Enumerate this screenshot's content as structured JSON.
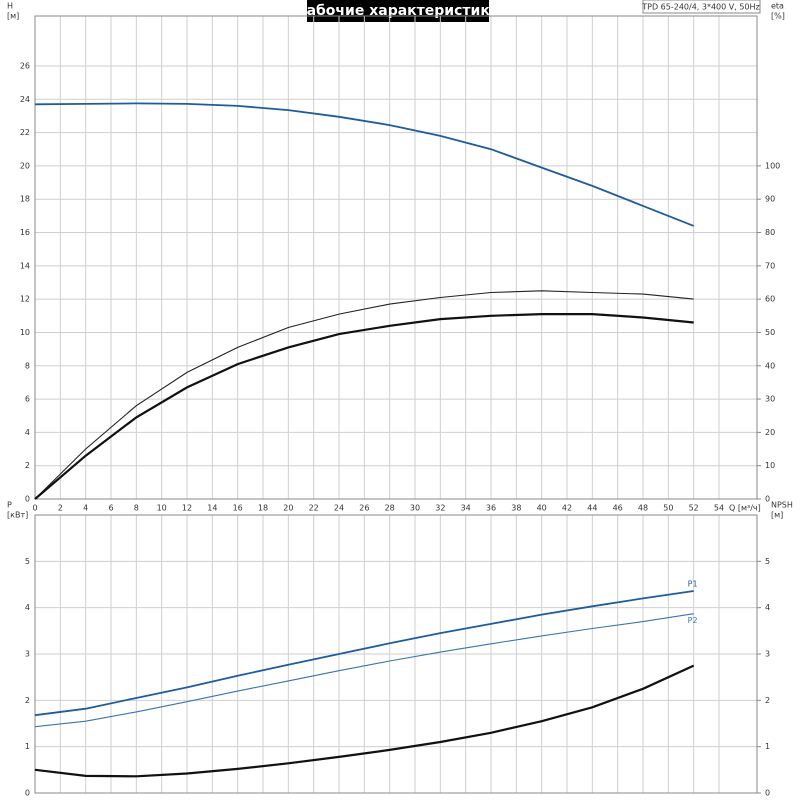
{
  "header": {
    "title": "Рабочие характеристики",
    "model": "TPD 65-240/4, 3*400 V, 50Hz"
  },
  "chart_data": [
    {
      "type": "line",
      "ylabel": "H",
      "yunit": "[м]",
      "y2label": "eta",
      "y2unit": "[%]",
      "xlabel": "Q [м³/ч]",
      "x": [
        0,
        4,
        8,
        12,
        16,
        20,
        24,
        28,
        32,
        36,
        40,
        44,
        48,
        52
      ],
      "xlim": [
        0,
        57
      ],
      "xticks": [
        0,
        2,
        4,
        6,
        8,
        10,
        12,
        14,
        16,
        18,
        20,
        22,
        24,
        26,
        28,
        30,
        32,
        34,
        36,
        38,
        40,
        42,
        44,
        46,
        48,
        50,
        52,
        54
      ],
      "ylim": [
        0,
        29
      ],
      "yticks": [
        0,
        2,
        4,
        6,
        8,
        10,
        12,
        14,
        16,
        18,
        20,
        22,
        24,
        26
      ],
      "y2lim": [
        0,
        145
      ],
      "y2ticks": [
        0,
        10,
        20,
        30,
        40,
        50,
        60,
        70,
        80,
        90,
        100
      ],
      "grid": true,
      "series": [
        {
          "color": "#1f5c9c",
          "width": 1.8,
          "values": [
            23.7,
            23.72,
            23.75,
            23.72,
            23.6,
            23.35,
            22.95,
            22.45,
            21.8,
            21.0,
            19.9,
            18.8,
            17.6,
            16.4
          ]
        },
        {
          "color": "#222222",
          "width": 1.1,
          "axis": "y2",
          "values": [
            0,
            15,
            28,
            38,
            45.5,
            51.5,
            55.5,
            58.5,
            60.5,
            62,
            62.5,
            62,
            61.5,
            60
          ]
        },
        {
          "color": "#111111",
          "width": 2.2,
          "axis": "y2",
          "values": [
            0,
            13,
            24.5,
            33.5,
            40.5,
            45.5,
            49.5,
            52,
            54,
            55,
            55.5,
            55.5,
            54.5,
            53
          ]
        }
      ]
    },
    {
      "type": "line",
      "ylabel": "P",
      "yunit": "[кВт]",
      "y2label": "NPSH",
      "y2unit": "[м]",
      "x": [
        0,
        4,
        8,
        12,
        16,
        20,
        24,
        28,
        32,
        36,
        40,
        44,
        48,
        52
      ],
      "xlim": [
        0,
        57
      ],
      "xticks": [
        0,
        2,
        4,
        6,
        8,
        10,
        12,
        14,
        16,
        18,
        20,
        22,
        24,
        26,
        28,
        30,
        32,
        34,
        36,
        38,
        40,
        42,
        44,
        46,
        48,
        50,
        52,
        54
      ],
      "ylim": [
        0,
        6
      ],
      "yticks": [
        0,
        1,
        2,
        3,
        4,
        5
      ],
      "y2lim": [
        0,
        6
      ],
      "y2ticks": [
        0,
        1,
        2,
        3,
        4,
        5
      ],
      "grid": true,
      "series": [
        {
          "name": "P1",
          "color": "#1f5c9c",
          "width": 1.8,
          "values": [
            1.68,
            1.82,
            2.05,
            2.28,
            2.53,
            2.77,
            3.0,
            3.23,
            3.45,
            3.65,
            3.85,
            4.03,
            4.2,
            4.36
          ]
        },
        {
          "name": "P2",
          "color": "#3a74b0",
          "width": 1.1,
          "values": [
            1.43,
            1.55,
            1.75,
            1.97,
            2.2,
            2.42,
            2.64,
            2.85,
            3.04,
            3.22,
            3.39,
            3.55,
            3.7,
            3.87
          ]
        },
        {
          "color": "#111111",
          "width": 2.2,
          "axis": "y2",
          "values": [
            0.5,
            0.37,
            0.36,
            0.42,
            0.52,
            0.64,
            0.78,
            0.93,
            1.1,
            1.3,
            1.55,
            1.85,
            2.25,
            2.75
          ]
        }
      ]
    }
  ]
}
